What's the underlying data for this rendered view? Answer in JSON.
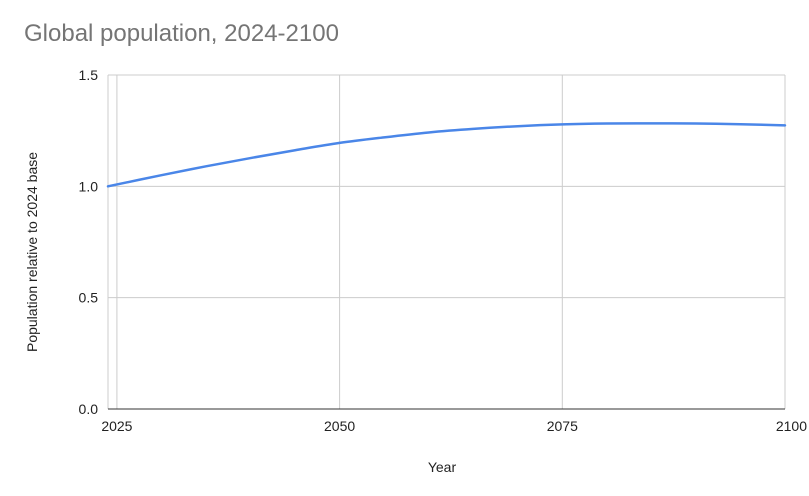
{
  "chart_data": {
    "type": "line",
    "title": "Global population, 2024-2100",
    "xlabel": "Year",
    "ylabel": "Population relative to 2024 base",
    "xlim": [
      2024,
      2100
    ],
    "ylim": [
      0,
      1.5
    ],
    "xticks": [
      2025,
      2050,
      2075,
      2100
    ],
    "xtick_labels": [
      "2025",
      "2050",
      "2075",
      "2100"
    ],
    "yticks": [
      0,
      0.5,
      1.0,
      1.5
    ],
    "ytick_labels": [
      "0.0",
      "0.5",
      "1.0",
      "1.5"
    ],
    "grid": true,
    "legend": "none",
    "series": [
      {
        "color": "#4a86e8",
        "x": [
          2024,
          2030,
          2035,
          2040,
          2045,
          2050,
          2055,
          2060,
          2065,
          2070,
          2075,
          2080,
          2085,
          2090,
          2095,
          2100
        ],
        "y": [
          1.0,
          1.05,
          1.09,
          1.127,
          1.162,
          1.195,
          1.22,
          1.242,
          1.258,
          1.27,
          1.278,
          1.282,
          1.283,
          1.282,
          1.279,
          1.274
        ]
      }
    ]
  }
}
